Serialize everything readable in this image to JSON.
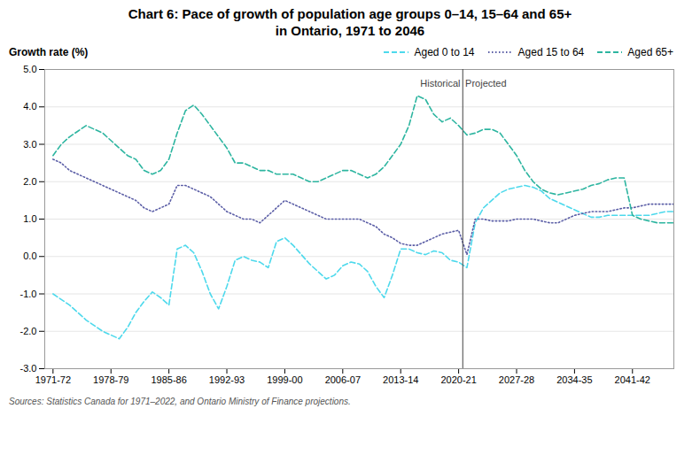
{
  "chart_data": {
    "type": "line",
    "title": "Chart 6: Pace of growth of population age groups 0–14, 15–64 and 65+",
    "subtitle": "in Ontario, 1971 to 2046",
    "ylabel": "Growth rate (%)",
    "source": "Sources: Statistics Canada for 1971–2022, and Ontario Ministry of Finance projections.",
    "x": [
      1971,
      1972,
      1973,
      1974,
      1975,
      1976,
      1977,
      1978,
      1979,
      1980,
      1981,
      1982,
      1983,
      1984,
      1985,
      1986,
      1987,
      1988,
      1989,
      1990,
      1991,
      1992,
      1993,
      1994,
      1995,
      1996,
      1997,
      1998,
      1999,
      2000,
      2001,
      2002,
      2003,
      2004,
      2005,
      2006,
      2007,
      2008,
      2009,
      2010,
      2011,
      2012,
      2013,
      2014,
      2015,
      2016,
      2017,
      2018,
      2019,
      2020,
      2021,
      2022,
      2023,
      2024,
      2025,
      2026,
      2027,
      2028,
      2029,
      2030,
      2031,
      2032,
      2033,
      2034,
      2035,
      2036,
      2037,
      2038,
      2039,
      2040,
      2041,
      2042,
      2043,
      2044,
      2045,
      2046
    ],
    "series": [
      {
        "name": "Aged 0 to 14",
        "color": "#4DD9EC",
        "line_style": "dashed",
        "values": [
          -1.0,
          -1.15,
          -1.3,
          -1.5,
          -1.7,
          -1.85,
          -2.0,
          -2.1,
          -2.2,
          -1.9,
          -1.5,
          -1.2,
          -0.95,
          -1.1,
          -1.3,
          0.2,
          0.3,
          0.1,
          -0.4,
          -1.0,
          -1.4,
          -0.8,
          -0.1,
          0.0,
          -0.1,
          -0.15,
          -0.3,
          0.4,
          0.5,
          0.3,
          0.05,
          -0.2,
          -0.4,
          -0.6,
          -0.5,
          -0.25,
          -0.15,
          -0.2,
          -0.4,
          -0.8,
          -1.1,
          -0.5,
          0.2,
          0.2,
          0.1,
          0.05,
          0.15,
          0.1,
          -0.1,
          -0.15,
          -0.3,
          0.9,
          1.3,
          1.5,
          1.7,
          1.8,
          1.85,
          1.9,
          1.85,
          1.75,
          1.55,
          1.45,
          1.35,
          1.25,
          1.15,
          1.05,
          1.05,
          1.1,
          1.1,
          1.1,
          1.1,
          1.1,
          1.1,
          1.15,
          1.2,
          1.2
        ]
      },
      {
        "name": "Aged 15 to 64",
        "color": "#5B5EA6",
        "line_style": "dotted",
        "values": [
          2.6,
          2.5,
          2.3,
          2.2,
          2.1,
          2.0,
          1.9,
          1.8,
          1.7,
          1.6,
          1.5,
          1.3,
          1.2,
          1.3,
          1.4,
          1.9,
          1.9,
          1.8,
          1.7,
          1.6,
          1.4,
          1.2,
          1.1,
          1.0,
          1.0,
          0.9,
          1.1,
          1.3,
          1.5,
          1.4,
          1.3,
          1.2,
          1.1,
          1.0,
          1.0,
          1.0,
          1.0,
          1.0,
          0.9,
          0.8,
          0.6,
          0.5,
          0.35,
          0.3,
          0.3,
          0.4,
          0.5,
          0.6,
          0.65,
          0.7,
          0.05,
          1.0,
          1.0,
          0.95,
          0.95,
          0.95,
          1.0,
          1.0,
          1.0,
          0.95,
          0.9,
          0.9,
          1.0,
          1.1,
          1.15,
          1.2,
          1.2,
          1.2,
          1.25,
          1.3,
          1.3,
          1.35,
          1.4,
          1.4,
          1.4,
          1.4
        ]
      },
      {
        "name": "Aged 65+",
        "color": "#2DB5A0",
        "line_style": "dashed",
        "values": [
          2.7,
          3.0,
          3.2,
          3.35,
          3.5,
          3.4,
          3.3,
          3.1,
          2.9,
          2.7,
          2.6,
          2.3,
          2.2,
          2.3,
          2.6,
          3.3,
          3.9,
          4.05,
          3.8,
          3.5,
          3.2,
          2.9,
          2.5,
          2.5,
          2.4,
          2.3,
          2.3,
          2.2,
          2.2,
          2.2,
          2.1,
          2.0,
          2.0,
          2.1,
          2.2,
          2.3,
          2.3,
          2.2,
          2.1,
          2.2,
          2.4,
          2.7,
          3.0,
          3.5,
          4.3,
          4.2,
          3.8,
          3.6,
          3.7,
          3.5,
          3.25,
          3.3,
          3.4,
          3.4,
          3.3,
          3.0,
          2.7,
          2.3,
          2.0,
          1.8,
          1.7,
          1.65,
          1.7,
          1.75,
          1.8,
          1.9,
          1.95,
          2.05,
          2.1,
          2.1,
          1.1,
          1.0,
          0.95,
          0.9,
          0.9,
          0.9
        ]
      }
    ],
    "xlim": [
      1970,
      2046
    ],
    "xticks": [
      {
        "value": 1971,
        "label": "1971-72"
      },
      {
        "value": 1978,
        "label": "1978-79"
      },
      {
        "value": 1985,
        "label": "1985-86"
      },
      {
        "value": 1992,
        "label": "1992-93"
      },
      {
        "value": 1999,
        "label": "1999-00"
      },
      {
        "value": 2006,
        "label": "2006-07"
      },
      {
        "value": 2013,
        "label": "2013-14"
      },
      {
        "value": 2020,
        "label": "2020-21"
      },
      {
        "value": 2027,
        "label": "2027-28"
      },
      {
        "value": 2034,
        "label": "2034-35"
      },
      {
        "value": 2041,
        "label": "2041-42"
      }
    ],
    "ylim": [
      -3.0,
      5.0
    ],
    "yticks": [
      {
        "value": -3.0,
        "label": "-3.0"
      },
      {
        "value": -2.0,
        "label": "-2.0"
      },
      {
        "value": -1.0,
        "label": "-1.0"
      },
      {
        "value": 0.0,
        "label": "0.0"
      },
      {
        "value": 1.0,
        "label": "1.0"
      },
      {
        "value": 2.0,
        "label": "2.0"
      },
      {
        "value": 3.0,
        "label": "3.0"
      },
      {
        "value": 4.0,
        "label": "4.0"
      },
      {
        "value": 5.0,
        "label": "5.0"
      }
    ],
    "grid": true,
    "legend": "top",
    "vlines": [
      2020.5
    ],
    "annotations": [
      {
        "text": "Historical",
        "x": 2020.2,
        "y": 4.72
      },
      {
        "text": "Projected",
        "x": 2020.8,
        "y": 4.72
      }
    ]
  }
}
